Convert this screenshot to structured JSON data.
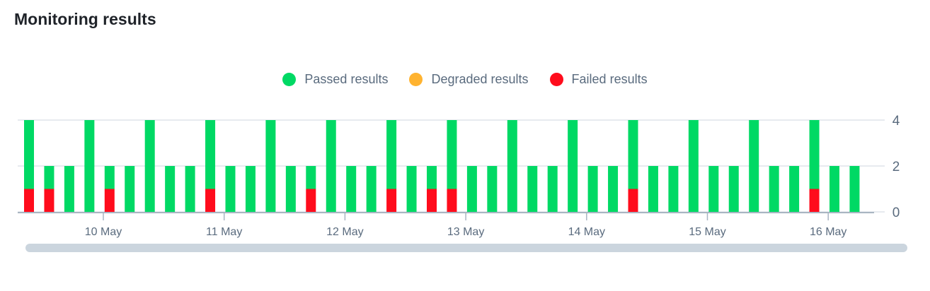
{
  "title": "Monitoring results",
  "legend": [
    {
      "label": "Passed results",
      "color": "#00d964"
    },
    {
      "label": "Degraded results",
      "color": "#ffb330"
    },
    {
      "label": "Failed results",
      "color": "#ff0c1c"
    }
  ],
  "chart_data": {
    "type": "bar",
    "stacked": true,
    "title": "",
    "xlabel": "",
    "ylabel": "",
    "ylim": [
      0,
      4
    ],
    "yticks": [
      "0",
      "2",
      "4"
    ],
    "y_axis_position": "right",
    "grid": true,
    "legend_position": "top",
    "xticks": [
      "10 May",
      "11 May",
      "12 May",
      "13 May",
      "14 May",
      "15 May",
      "16 May"
    ],
    "categories": [
      "9 May 09:00",
      "9 May 13:00",
      "9 May 17:00",
      "9 May 21:00",
      "10 May 01:00",
      "10 May 05:00",
      "10 May 09:00",
      "10 May 13:00",
      "10 May 17:00",
      "10 May 21:00",
      "11 May 01:00",
      "11 May 05:00",
      "11 May 09:00",
      "11 May 13:00",
      "11 May 17:00",
      "11 May 21:00",
      "12 May 01:00",
      "12 May 05:00",
      "12 May 09:00",
      "12 May 13:00",
      "12 May 17:00",
      "12 May 21:00",
      "13 May 01:00",
      "13 May 05:00",
      "13 May 09:00",
      "13 May 13:00",
      "13 May 17:00",
      "13 May 21:00",
      "14 May 01:00",
      "14 May 05:00",
      "14 May 09:00",
      "14 May 13:00",
      "14 May 17:00",
      "14 May 21:00",
      "15 May 01:00",
      "15 May 05:00",
      "15 May 09:00",
      "15 May 13:00",
      "15 May 17:00",
      "15 May 21:00",
      "16 May 01:00",
      "16 May 05:00"
    ],
    "series": [
      {
        "name": "Failed results",
        "color": "#ff0c1c",
        "values": [
          1,
          1,
          0,
          0,
          1,
          0,
          0,
          0,
          0,
          1,
          0,
          0,
          0,
          0,
          1,
          0,
          0,
          0,
          1,
          0,
          1,
          1,
          0,
          0,
          0,
          0,
          0,
          0,
          0,
          0,
          1,
          0,
          0,
          0,
          0,
          0,
          0,
          0,
          0,
          1,
          0,
          0
        ]
      },
      {
        "name": "Degraded results",
        "color": "#ffb330",
        "values": [
          0,
          0,
          0,
          0,
          0,
          0,
          0,
          0,
          0,
          0,
          0,
          0,
          0,
          0,
          0,
          0,
          0,
          0,
          0,
          0,
          0,
          0,
          0,
          0,
          0,
          0,
          0,
          0,
          0,
          0,
          0,
          0,
          0,
          0,
          0,
          0,
          0,
          0,
          0,
          0,
          0,
          0
        ]
      },
      {
        "name": "Passed results",
        "color": "#00d964",
        "values": [
          3,
          1,
          2,
          4,
          1,
          2,
          4,
          2,
          2,
          3,
          2,
          2,
          4,
          2,
          1,
          4,
          2,
          2,
          3,
          2,
          1,
          3,
          2,
          2,
          4,
          2,
          2,
          4,
          2,
          2,
          3,
          2,
          2,
          4,
          2,
          2,
          4,
          2,
          2,
          3,
          2,
          2
        ]
      }
    ]
  }
}
